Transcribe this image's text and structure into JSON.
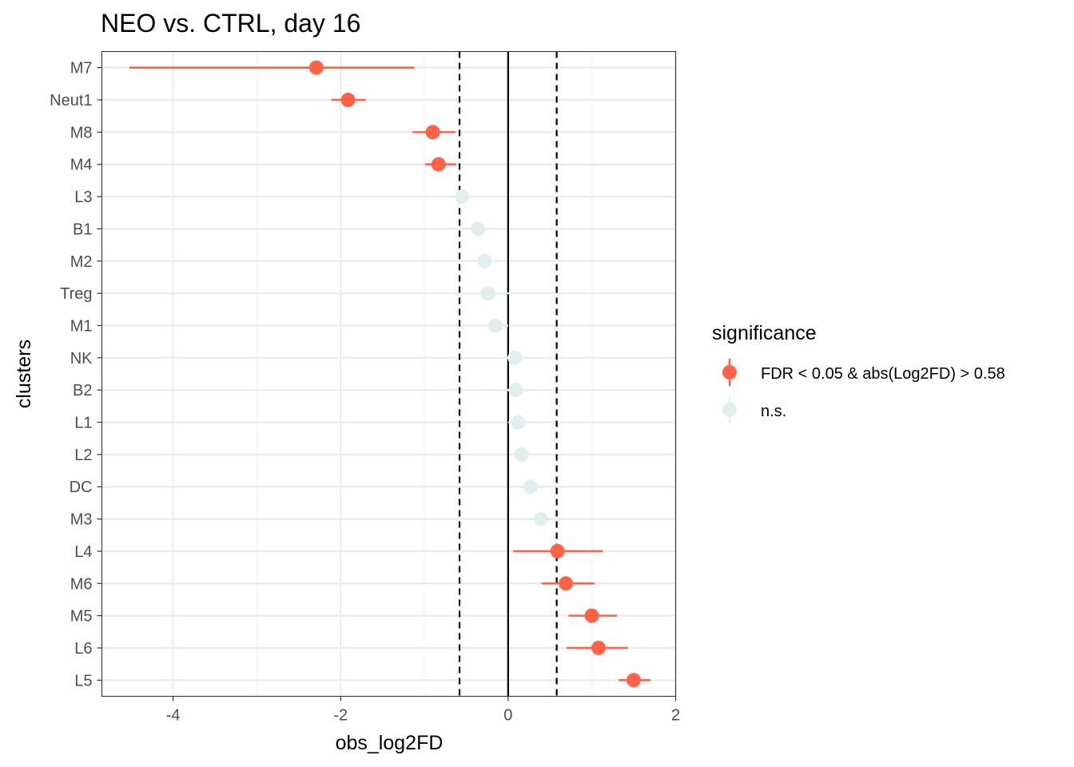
{
  "chart_data": {
    "type": "scatter",
    "title": "NEO vs. CTRL, day 16",
    "xlabel": "obs_log2FD",
    "ylabel": "clusters",
    "xlim": [
      -4.85,
      2.0
    ],
    "x_ticks": [
      -4,
      -2,
      0,
      2
    ],
    "x_tick_labels": [
      "-4",
      "-2",
      "0",
      "2"
    ],
    "categories": [
      "M7",
      "Neut1",
      "M8",
      "M4",
      "L3",
      "B1",
      "M2",
      "Treg",
      "M1",
      "NK",
      "B2",
      "L1",
      "L2",
      "DC",
      "M3",
      "L4",
      "M6",
      "M5",
      "L6",
      "L5"
    ],
    "reference_lines": [
      {
        "x": -0.58,
        "style": "dashed"
      },
      {
        "x": 0,
        "style": "solid"
      },
      {
        "x": 0.58,
        "style": "dashed"
      }
    ],
    "grid": true,
    "legend": {
      "title": "significance",
      "placement": "right",
      "entries": [
        {
          "label": "FDR < 0.05 & abs(Log2FD) > 0.58",
          "color": "#FF6347"
        },
        {
          "label": "n.s.",
          "color": "#E0EEEE"
        }
      ]
    },
    "points": [
      {
        "cluster": "M7",
        "value": -2.29,
        "lower": -4.52,
        "upper": -1.12,
        "significance": "FDR < 0.05 & abs(Log2FD) > 0.58"
      },
      {
        "cluster": "Neut1",
        "value": -1.91,
        "lower": -2.11,
        "upper": -1.7,
        "significance": "FDR < 0.05 & abs(Log2FD) > 0.58"
      },
      {
        "cluster": "M8",
        "value": -0.9,
        "lower": -1.14,
        "upper": -0.63,
        "significance": "FDR < 0.05 & abs(Log2FD) > 0.58"
      },
      {
        "cluster": "M4",
        "value": -0.83,
        "lower": -0.99,
        "upper": -0.62,
        "significance": "FDR < 0.05 & abs(Log2FD) > 0.58"
      },
      {
        "cluster": "L3",
        "value": -0.55,
        "lower": -0.7,
        "upper": -0.4,
        "significance": "n.s."
      },
      {
        "cluster": "B1",
        "value": -0.36,
        "lower": -0.55,
        "upper": -0.18,
        "significance": "n.s."
      },
      {
        "cluster": "M2",
        "value": -0.28,
        "lower": -0.45,
        "upper": -0.12,
        "significance": "n.s."
      },
      {
        "cluster": "Treg",
        "value": -0.24,
        "lower": -0.58,
        "upper": 0.05,
        "significance": "n.s."
      },
      {
        "cluster": "M1",
        "value": -0.15,
        "lower": -0.3,
        "upper": 0.0,
        "significance": "n.s."
      },
      {
        "cluster": "NK",
        "value": 0.08,
        "lower": -0.05,
        "upper": 0.22,
        "significance": "n.s."
      },
      {
        "cluster": "B2",
        "value": 0.09,
        "lower": -0.25,
        "upper": 0.35,
        "significance": "n.s."
      },
      {
        "cluster": "L1",
        "value": 0.12,
        "lower": 0.0,
        "upper": 0.25,
        "significance": "n.s."
      },
      {
        "cluster": "L2",
        "value": 0.16,
        "lower": 0.03,
        "upper": 0.3,
        "significance": "n.s."
      },
      {
        "cluster": "DC",
        "value": 0.27,
        "lower": 0.1,
        "upper": 0.45,
        "significance": "n.s."
      },
      {
        "cluster": "M3",
        "value": 0.39,
        "lower": 0.24,
        "upper": 0.55,
        "significance": "n.s."
      },
      {
        "cluster": "L4",
        "value": 0.59,
        "lower": 0.06,
        "upper": 1.13,
        "significance": "FDR < 0.05 & abs(Log2FD) > 0.58"
      },
      {
        "cluster": "M6",
        "value": 0.69,
        "lower": 0.4,
        "upper": 1.03,
        "significance": "FDR < 0.05 & abs(Log2FD) > 0.58"
      },
      {
        "cluster": "M5",
        "value": 1.0,
        "lower": 0.72,
        "upper": 1.3,
        "significance": "FDR < 0.05 & abs(Log2FD) > 0.58"
      },
      {
        "cluster": "L6",
        "value": 1.08,
        "lower": 0.7,
        "upper": 1.43,
        "significance": "FDR < 0.05 & abs(Log2FD) > 0.58"
      },
      {
        "cluster": "L5",
        "value": 1.5,
        "lower": 1.32,
        "upper": 1.7,
        "significance": "FDR < 0.05 & abs(Log2FD) > 0.58"
      }
    ]
  }
}
